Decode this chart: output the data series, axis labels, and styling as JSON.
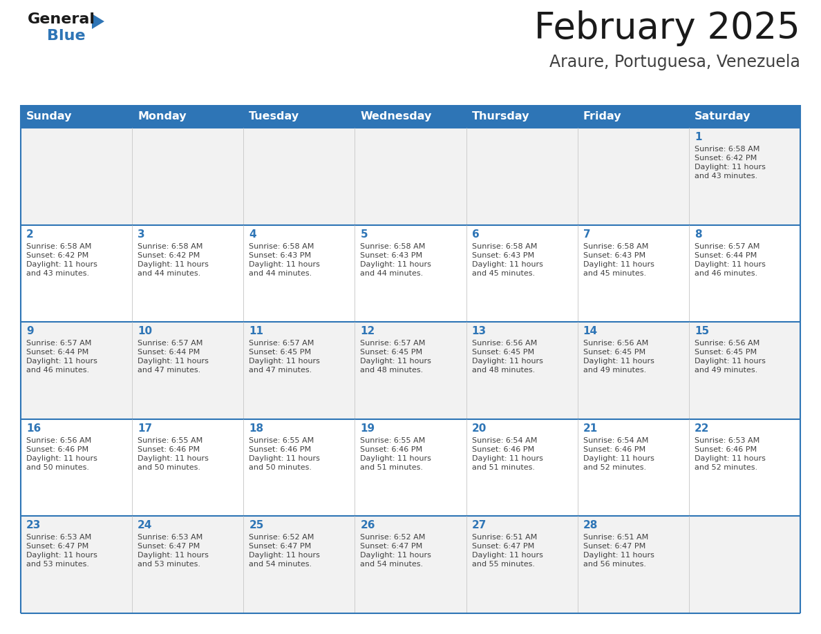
{
  "title": "February 2025",
  "subtitle": "Araure, Portuguesa, Venezuela",
  "header_bg": "#2E75B6",
  "header_text_color": "#FFFFFF",
  "header_font_size": 12,
  "cell_line_color": "#2E75B6",
  "day_number_color": "#2E75B6",
  "detail_text_color": "#404040",
  "background_color": "#FFFFFF",
  "row_bg_odd": "#F2F2F2",
  "row_bg_even": "#FFFFFF",
  "col_divider_color": "#CCCCCC",
  "days_of_week": [
    "Sunday",
    "Monday",
    "Tuesday",
    "Wednesday",
    "Thursday",
    "Friday",
    "Saturday"
  ],
  "calendar_data": [
    [
      null,
      null,
      null,
      null,
      null,
      null,
      {
        "day": 1,
        "sunrise": "6:58 AM",
        "sunset": "6:42 PM",
        "daylight": "11 hours and 43 minutes."
      }
    ],
    [
      {
        "day": 2,
        "sunrise": "6:58 AM",
        "sunset": "6:42 PM",
        "daylight": "11 hours and 43 minutes."
      },
      {
        "day": 3,
        "sunrise": "6:58 AM",
        "sunset": "6:42 PM",
        "daylight": "11 hours and 44 minutes."
      },
      {
        "day": 4,
        "sunrise": "6:58 AM",
        "sunset": "6:43 PM",
        "daylight": "11 hours and 44 minutes."
      },
      {
        "day": 5,
        "sunrise": "6:58 AM",
        "sunset": "6:43 PM",
        "daylight": "11 hours and 44 minutes."
      },
      {
        "day": 6,
        "sunrise": "6:58 AM",
        "sunset": "6:43 PM",
        "daylight": "11 hours and 45 minutes."
      },
      {
        "day": 7,
        "sunrise": "6:58 AM",
        "sunset": "6:43 PM",
        "daylight": "11 hours and 45 minutes."
      },
      {
        "day": 8,
        "sunrise": "6:57 AM",
        "sunset": "6:44 PM",
        "daylight": "11 hours and 46 minutes."
      }
    ],
    [
      {
        "day": 9,
        "sunrise": "6:57 AM",
        "sunset": "6:44 PM",
        "daylight": "11 hours and 46 minutes."
      },
      {
        "day": 10,
        "sunrise": "6:57 AM",
        "sunset": "6:44 PM",
        "daylight": "11 hours and 47 minutes."
      },
      {
        "day": 11,
        "sunrise": "6:57 AM",
        "sunset": "6:45 PM",
        "daylight": "11 hours and 47 minutes."
      },
      {
        "day": 12,
        "sunrise": "6:57 AM",
        "sunset": "6:45 PM",
        "daylight": "11 hours and 48 minutes."
      },
      {
        "day": 13,
        "sunrise": "6:56 AM",
        "sunset": "6:45 PM",
        "daylight": "11 hours and 48 minutes."
      },
      {
        "day": 14,
        "sunrise": "6:56 AM",
        "sunset": "6:45 PM",
        "daylight": "11 hours and 49 minutes."
      },
      {
        "day": 15,
        "sunrise": "6:56 AM",
        "sunset": "6:45 PM",
        "daylight": "11 hours and 49 minutes."
      }
    ],
    [
      {
        "day": 16,
        "sunrise": "6:56 AM",
        "sunset": "6:46 PM",
        "daylight": "11 hours and 50 minutes."
      },
      {
        "day": 17,
        "sunrise": "6:55 AM",
        "sunset": "6:46 PM",
        "daylight": "11 hours and 50 minutes."
      },
      {
        "day": 18,
        "sunrise": "6:55 AM",
        "sunset": "6:46 PM",
        "daylight": "11 hours and 50 minutes."
      },
      {
        "day": 19,
        "sunrise": "6:55 AM",
        "sunset": "6:46 PM",
        "daylight": "11 hours and 51 minutes."
      },
      {
        "day": 20,
        "sunrise": "6:54 AM",
        "sunset": "6:46 PM",
        "daylight": "11 hours and 51 minutes."
      },
      {
        "day": 21,
        "sunrise": "6:54 AM",
        "sunset": "6:46 PM",
        "daylight": "11 hours and 52 minutes."
      },
      {
        "day": 22,
        "sunrise": "6:53 AM",
        "sunset": "6:46 PM",
        "daylight": "11 hours and 52 minutes."
      }
    ],
    [
      {
        "day": 23,
        "sunrise": "6:53 AM",
        "sunset": "6:47 PM",
        "daylight": "11 hours and 53 minutes."
      },
      {
        "day": 24,
        "sunrise": "6:53 AM",
        "sunset": "6:47 PM",
        "daylight": "11 hours and 53 minutes."
      },
      {
        "day": 25,
        "sunrise": "6:52 AM",
        "sunset": "6:47 PM",
        "daylight": "11 hours and 54 minutes."
      },
      {
        "day": 26,
        "sunrise": "6:52 AM",
        "sunset": "6:47 PM",
        "daylight": "11 hours and 54 minutes."
      },
      {
        "day": 27,
        "sunrise": "6:51 AM",
        "sunset": "6:47 PM",
        "daylight": "11 hours and 55 minutes."
      },
      {
        "day": 28,
        "sunrise": "6:51 AM",
        "sunset": "6:47 PM",
        "daylight": "11 hours and 56 minutes."
      },
      null
    ]
  ],
  "logo_color_general": "#1a1a1a",
  "logo_color_blue": "#2E75B6",
  "logo_triangle_color": "#2E75B6",
  "title_color": "#1a1a1a",
  "subtitle_color": "#404040"
}
